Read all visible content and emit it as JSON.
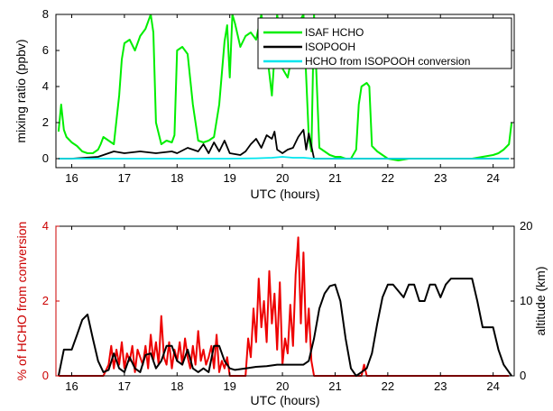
{
  "chart_data": [
    {
      "type": "line",
      "xlabel": "UTC (hours)",
      "ylabel": "mixing ratio (ppbv)",
      "xlim": [
        15.7,
        24.4
      ],
      "ylim": [
        -0.5,
        8
      ],
      "xticks": [
        16,
        17,
        18,
        19,
        20,
        21,
        22,
        23,
        24
      ],
      "yticks": [
        0,
        2,
        4,
        6,
        8
      ],
      "legend_position": "top-right",
      "colors": {
        "isaf": "#00ee00",
        "isopooh": "#000000",
        "conv": "#00e5ee"
      },
      "series": [
        {
          "name": "ISAF HCHO",
          "x": [
            15.75,
            15.8,
            15.85,
            15.9,
            16.0,
            16.1,
            16.2,
            16.3,
            16.4,
            16.5,
            16.55,
            16.6,
            16.7,
            16.8,
            16.9,
            16.95,
            17.0,
            17.1,
            17.2,
            17.3,
            17.4,
            17.5,
            17.55,
            17.6,
            17.7,
            17.8,
            17.9,
            17.95,
            18.0,
            18.1,
            18.2,
            18.3,
            18.4,
            18.5,
            18.6,
            18.7,
            18.8,
            18.9,
            18.95,
            19.0,
            19.05,
            19.1,
            19.2,
            19.3,
            19.4,
            19.5,
            19.6,
            19.7,
            19.8,
            19.9,
            19.95,
            20.0,
            20.1,
            20.2,
            20.3,
            20.4,
            20.5,
            20.55,
            20.6,
            20.7,
            20.8,
            20.9,
            21.0,
            21.1,
            21.2,
            21.3,
            21.4,
            21.45,
            21.5,
            21.6,
            21.65,
            21.7,
            21.8,
            21.9,
            22.0,
            22.2,
            22.4,
            22.6,
            22.8,
            23.0,
            23.2,
            23.4,
            23.6,
            23.8,
            24.0,
            24.1,
            24.2,
            24.3,
            24.35
          ],
          "y": [
            1.5,
            3.0,
            1.6,
            1.2,
            0.9,
            0.7,
            0.4,
            0.3,
            0.3,
            0.5,
            0.8,
            1.2,
            1.0,
            0.8,
            3.5,
            5.5,
            6.4,
            6.6,
            6.0,
            6.8,
            7.2,
            8.0,
            7.0,
            2.0,
            0.8,
            1.0,
            0.9,
            1.3,
            6.0,
            6.2,
            5.8,
            3.0,
            1.0,
            0.9,
            1.0,
            1.2,
            3.0,
            6.5,
            7.4,
            4.5,
            8.0,
            7.5,
            6.2,
            6.8,
            7.0,
            6.6,
            8.0,
            6.0,
            3.5,
            8.0,
            7.0,
            5.0,
            4.5,
            6.0,
            7.5,
            8.0,
            1.2,
            0.4,
            8.0,
            0.6,
            0.4,
            0.2,
            0.1,
            0.1,
            0.0,
            0.0,
            0.5,
            3.0,
            4.0,
            4.2,
            4.0,
            0.7,
            0.4,
            0.2,
            0.0,
            -0.1,
            0.0,
            0.0,
            0.0,
            0.0,
            0.0,
            0.0,
            0.0,
            0.1,
            0.2,
            0.3,
            0.5,
            0.8,
            2.0
          ]
        },
        {
          "name": "ISOPOOH",
          "x": [
            15.75,
            16.0,
            16.5,
            16.8,
            17.0,
            17.3,
            17.6,
            17.9,
            18.0,
            18.2,
            18.4,
            18.5,
            18.6,
            18.7,
            18.8,
            18.9,
            19.0,
            19.2,
            19.3,
            19.4,
            19.5,
            19.6,
            19.7,
            19.8,
            19.85,
            19.9,
            20.0,
            20.1,
            20.2,
            20.3,
            20.4,
            20.45,
            20.5,
            20.6,
            20.8,
            21.0,
            21.5,
            22.0,
            22.5,
            23.0,
            23.5,
            24.0,
            24.3
          ],
          "y": [
            0.0,
            0.0,
            0.1,
            0.4,
            0.3,
            0.4,
            0.3,
            0.4,
            0.3,
            0.6,
            0.4,
            0.8,
            0.3,
            0.9,
            0.4,
            1.0,
            0.3,
            0.2,
            0.4,
            0.8,
            1.1,
            0.6,
            1.3,
            1.1,
            1.5,
            0.5,
            0.3,
            0.5,
            0.6,
            1.2,
            1.6,
            0.5,
            1.4,
            0.0,
            0.0,
            0.0,
            0.0,
            0.0,
            0.0,
            0.0,
            0.0,
            0.0,
            0.0
          ]
        },
        {
          "name": "HCHO from ISOPOOH conversion",
          "x": [
            15.75,
            16.5,
            17.0,
            17.5,
            18.0,
            18.5,
            19.0,
            19.5,
            19.8,
            20.0,
            20.2,
            20.4,
            20.6,
            21.0,
            22.0,
            23.0,
            24.0,
            24.3
          ],
          "y": [
            0.0,
            0.0,
            0.0,
            0.0,
            0.0,
            0.0,
            0.0,
            0.02,
            0.05,
            0.1,
            0.05,
            0.05,
            0.0,
            0.0,
            0.0,
            0.0,
            0.0,
            0.0
          ]
        }
      ]
    },
    {
      "type": "line",
      "xlabel": "UTC (hours)",
      "ylabel": "% of HCHO from conversion",
      "ylabel_right": "altitude (km)",
      "xlim": [
        15.7,
        24.4
      ],
      "ylim": [
        0,
        4
      ],
      "ylim_right": [
        0,
        20
      ],
      "xticks": [
        16,
        17,
        18,
        19,
        20,
        21,
        22,
        23,
        24
      ],
      "yticks": [
        0,
        2,
        4
      ],
      "yticks_right": [
        0,
        10,
        20
      ],
      "colors": {
        "pct": "#ee0000",
        "alt": "#000000",
        "left_axis": "#cc0000"
      },
      "series": [
        {
          "name": "% of HCHO from conversion",
          "axis": "left",
          "x": [
            15.75,
            16.6,
            16.7,
            16.75,
            16.8,
            16.85,
            16.9,
            16.95,
            17.0,
            17.05,
            17.1,
            17.15,
            17.2,
            17.25,
            17.3,
            17.35,
            17.4,
            17.45,
            17.5,
            17.55,
            17.6,
            17.65,
            17.7,
            17.75,
            17.8,
            17.85,
            17.9,
            17.95,
            18.0,
            18.05,
            18.1,
            18.15,
            18.2,
            18.25,
            18.3,
            18.35,
            18.4,
            18.45,
            18.5,
            18.55,
            18.6,
            18.65,
            18.7,
            18.75,
            18.8,
            18.85,
            18.9,
            18.95,
            19.0,
            19.3,
            19.35,
            19.4,
            19.45,
            19.5,
            19.55,
            19.6,
            19.65,
            19.7,
            19.75,
            19.8,
            19.85,
            19.9,
            19.95,
            20.0,
            20.05,
            20.1,
            20.15,
            20.2,
            20.25,
            20.3,
            20.35,
            20.4,
            20.45,
            20.5,
            20.55,
            20.6,
            21.5,
            21.55,
            21.6,
            24.3
          ],
          "y": [
            0,
            0,
            0.3,
            0.8,
            0.2,
            0.7,
            0.3,
            0.9,
            0.2,
            0.6,
            0.4,
            0.8,
            0.1,
            0.7,
            0.5,
            0.3,
            0.8,
            0.2,
            1.1,
            0.4,
            0.9,
            0.3,
            1.6,
            0.5,
            0.3,
            0.9,
            0.2,
            0.7,
            0.4,
            0.9,
            0.3,
            1.0,
            0.5,
            0.2,
            0.8,
            0.3,
            1.2,
            0.4,
            0.7,
            0.3,
            0.5,
            0.8,
            0.2,
            1.1,
            0.1,
            0.4,
            0.2,
            0.5,
            0,
            0,
            1.0,
            0.5,
            1.8,
            0.9,
            2.6,
            1.3,
            2.0,
            0.9,
            2.8,
            1.4,
            2.2,
            0.7,
            2.5,
            0.3,
            1.0,
            0.6,
            1.9,
            0.8,
            2.7,
            3.7,
            1.4,
            3.3,
            0.9,
            1.8,
            0.4,
            0,
            0,
            0.3,
            0,
            0
          ]
        },
        {
          "name": "altitude (km)",
          "axis": "right",
          "x": [
            15.75,
            15.85,
            16.0,
            16.1,
            16.2,
            16.3,
            16.4,
            16.5,
            16.6,
            16.7,
            16.8,
            16.9,
            17.0,
            17.1,
            17.2,
            17.3,
            17.4,
            17.5,
            17.6,
            17.7,
            17.8,
            17.9,
            18.0,
            18.1,
            18.2,
            18.3,
            18.4,
            18.5,
            18.6,
            18.7,
            18.8,
            18.9,
            19.0,
            19.1,
            19.3,
            19.5,
            19.7,
            19.9,
            20.1,
            20.3,
            20.4,
            20.5,
            20.6,
            20.7,
            20.8,
            20.9,
            21.0,
            21.1,
            21.2,
            21.3,
            21.4,
            21.5,
            21.6,
            21.7,
            21.8,
            21.9,
            22.0,
            22.1,
            22.3,
            22.4,
            22.5,
            22.6,
            22.7,
            22.8,
            22.9,
            23.0,
            23.1,
            23.2,
            23.3,
            23.4,
            23.5,
            23.6,
            23.7,
            23.8,
            23.9,
            24.0,
            24.1,
            24.2,
            24.3,
            24.35
          ],
          "y": [
            0,
            3.5,
            3.5,
            5.5,
            7.5,
            8.2,
            5.0,
            2.0,
            0.5,
            0.8,
            3.0,
            1.0,
            0.5,
            2.5,
            1.0,
            0.5,
            2.8,
            3.0,
            1.0,
            2.0,
            4.0,
            4.0,
            2.0,
            1.5,
            3.5,
            1.0,
            0.5,
            1.0,
            0.5,
            4.0,
            4.0,
            2.0,
            1.0,
            0.8,
            1.0,
            1.2,
            1.3,
            1.5,
            1.5,
            1.5,
            1.5,
            2.0,
            5.0,
            9.0,
            11.0,
            12.0,
            12.2,
            10.0,
            5.0,
            1.0,
            0.0,
            0.5,
            1.0,
            3.0,
            7.0,
            10.5,
            12.2,
            12.2,
            10.5,
            12.2,
            12.2,
            10.0,
            10.0,
            12.2,
            12.2,
            10.5,
            12.2,
            13.0,
            13.0,
            13.0,
            13.0,
            13.0,
            10.0,
            6.5,
            6.5,
            6.5,
            3.5,
            1.5,
            0.5,
            0.0
          ]
        }
      ]
    }
  ]
}
